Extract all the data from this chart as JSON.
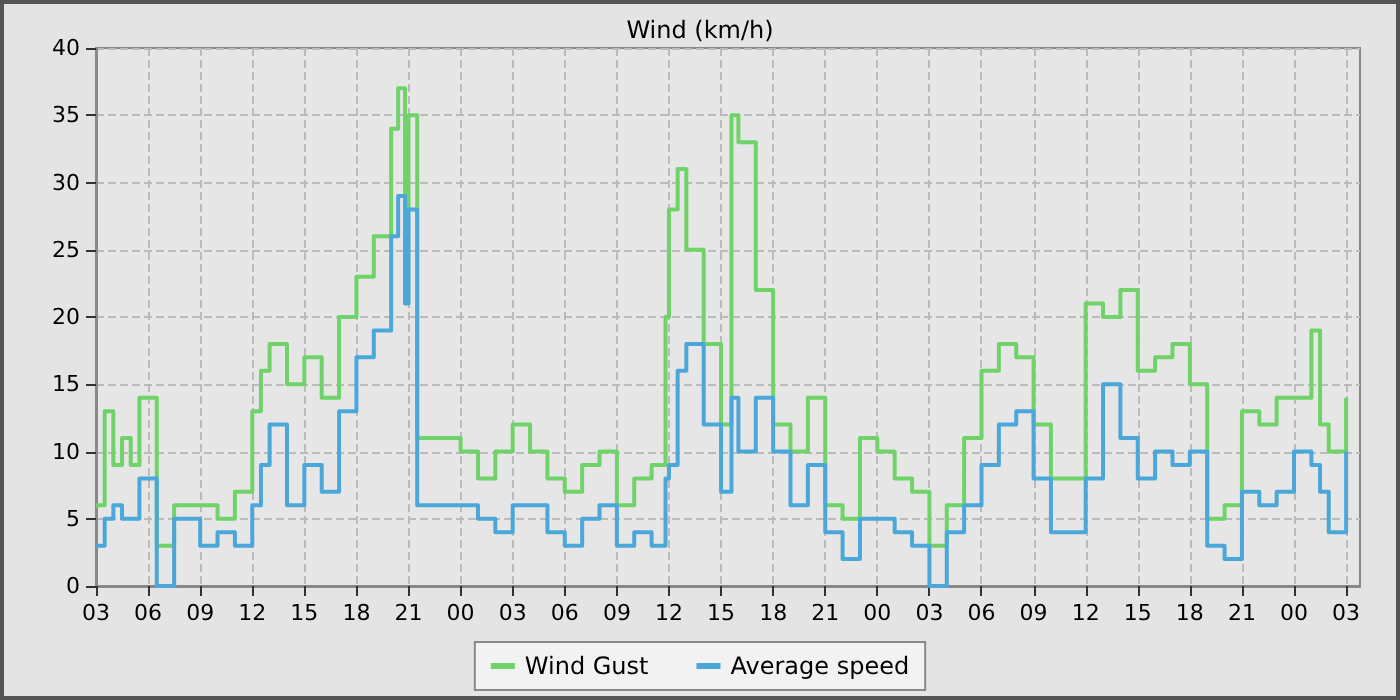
{
  "chart_data": {
    "type": "step",
    "title": "Wind (km/h)",
    "marker": "none",
    "line_style": "solid",
    "grid": true,
    "legend": "bottom",
    "xlim": [
      3,
      75.8
    ],
    "ylim": [
      0,
      40
    ],
    "yticks": [
      0,
      5,
      10,
      15,
      20,
      25,
      30,
      35,
      40
    ],
    "xticks": [
      {
        "value": 3,
        "label": "03"
      },
      {
        "value": 6,
        "label": "06"
      },
      {
        "value": 9,
        "label": "09"
      },
      {
        "value": 12,
        "label": "12"
      },
      {
        "value": 15,
        "label": "15"
      },
      {
        "value": 18,
        "label": "18"
      },
      {
        "value": 21,
        "label": "21"
      },
      {
        "value": 24,
        "label": "00"
      },
      {
        "value": 27,
        "label": "03"
      },
      {
        "value": 30,
        "label": "06"
      },
      {
        "value": 33,
        "label": "09"
      },
      {
        "value": 36,
        "label": "12"
      },
      {
        "value": 39,
        "label": "15"
      },
      {
        "value": 42,
        "label": "18"
      },
      {
        "value": 45,
        "label": "21"
      },
      {
        "value": 48,
        "label": "00"
      },
      {
        "value": 51,
        "label": "03"
      },
      {
        "value": 54,
        "label": "06"
      },
      {
        "value": 57,
        "label": "09"
      },
      {
        "value": 60,
        "label": "12"
      },
      {
        "value": 63,
        "label": "15"
      },
      {
        "value": 66,
        "label": "18"
      },
      {
        "value": 69,
        "label": "21"
      },
      {
        "value": 72,
        "label": "00"
      },
      {
        "value": 75,
        "label": "03"
      }
    ],
    "series": [
      {
        "name": "Wind Gust",
        "color": "#6fd36a",
        "x": [
          3,
          3.5,
          4,
          4.5,
          5,
          5.5,
          6,
          6.5,
          7,
          7.5,
          8,
          9,
          10,
          11,
          12,
          12.5,
          13,
          14,
          15,
          16,
          17,
          18,
          19,
          20,
          20.4,
          20.8,
          21,
          21.5,
          22,
          23,
          24,
          25,
          26,
          27,
          28,
          29,
          30,
          31,
          32,
          33,
          34,
          35,
          35.8,
          36,
          36.5,
          37,
          38,
          39,
          39.6,
          40,
          41,
          42,
          43,
          44,
          45,
          46,
          47,
          48,
          49,
          50,
          51,
          52,
          53,
          54,
          55,
          56,
          57,
          58,
          59,
          60,
          61,
          62,
          63,
          64,
          65,
          66,
          67,
          68,
          69,
          70,
          71,
          72,
          73,
          73.5,
          74,
          75
        ],
        "values": [
          6,
          13,
          9,
          11,
          9,
          14,
          14,
          3,
          3,
          6,
          6,
          6,
          5,
          7,
          13,
          16,
          18,
          15,
          17,
          14,
          20,
          23,
          26,
          34,
          37,
          28,
          35,
          11,
          11,
          11,
          10,
          8,
          10,
          12,
          10,
          8,
          7,
          9,
          10,
          6,
          8,
          9,
          20,
          28,
          31,
          25,
          18,
          12,
          35,
          33,
          22,
          12,
          10,
          14,
          6,
          5,
          11,
          10,
          8,
          7,
          3,
          6,
          11,
          16,
          18,
          17,
          12,
          8,
          8,
          21,
          20,
          22,
          16,
          17,
          18,
          15,
          5,
          6,
          13,
          12,
          14,
          14,
          19,
          12,
          10,
          14
        ]
      },
      {
        "name": "Average speed",
        "color": "#4ba7d9",
        "x": [
          3,
          3.5,
          4,
          4.5,
          5,
          5.5,
          6,
          6.5,
          7,
          7.5,
          8,
          9,
          10,
          11,
          12,
          12.5,
          13,
          14,
          15,
          16,
          17,
          18,
          19,
          20,
          20.4,
          20.8,
          21,
          21.5,
          22,
          23,
          24,
          25,
          26,
          27,
          28,
          29,
          30,
          31,
          32,
          33,
          34,
          35,
          35.8,
          36,
          36.5,
          37,
          38,
          39,
          39.6,
          40,
          41,
          42,
          43,
          44,
          45,
          46,
          47,
          48,
          49,
          50,
          51,
          52,
          53,
          54,
          55,
          56,
          57,
          58,
          59,
          60,
          61,
          62,
          63,
          64,
          65,
          66,
          67,
          68,
          69,
          70,
          71,
          72,
          73,
          73.5,
          74,
          75
        ],
        "values": [
          3,
          5,
          6,
          5,
          5,
          8,
          8,
          0,
          0,
          5,
          5,
          3,
          4,
          3,
          6,
          9,
          12,
          6,
          9,
          7,
          13,
          17,
          19,
          26,
          29,
          21,
          28,
          6,
          6,
          6,
          6,
          5,
          4,
          6,
          6,
          4,
          3,
          5,
          6,
          3,
          4,
          3,
          8,
          9,
          16,
          18,
          12,
          7,
          14,
          10,
          14,
          10,
          6,
          9,
          4,
          2,
          5,
          5,
          4,
          3,
          0,
          4,
          6,
          9,
          12,
          13,
          8,
          4,
          4,
          8,
          15,
          11,
          8,
          10,
          9,
          10,
          3,
          2,
          7,
          6,
          7,
          10,
          9,
          7,
          4,
          10
        ]
      }
    ]
  }
}
